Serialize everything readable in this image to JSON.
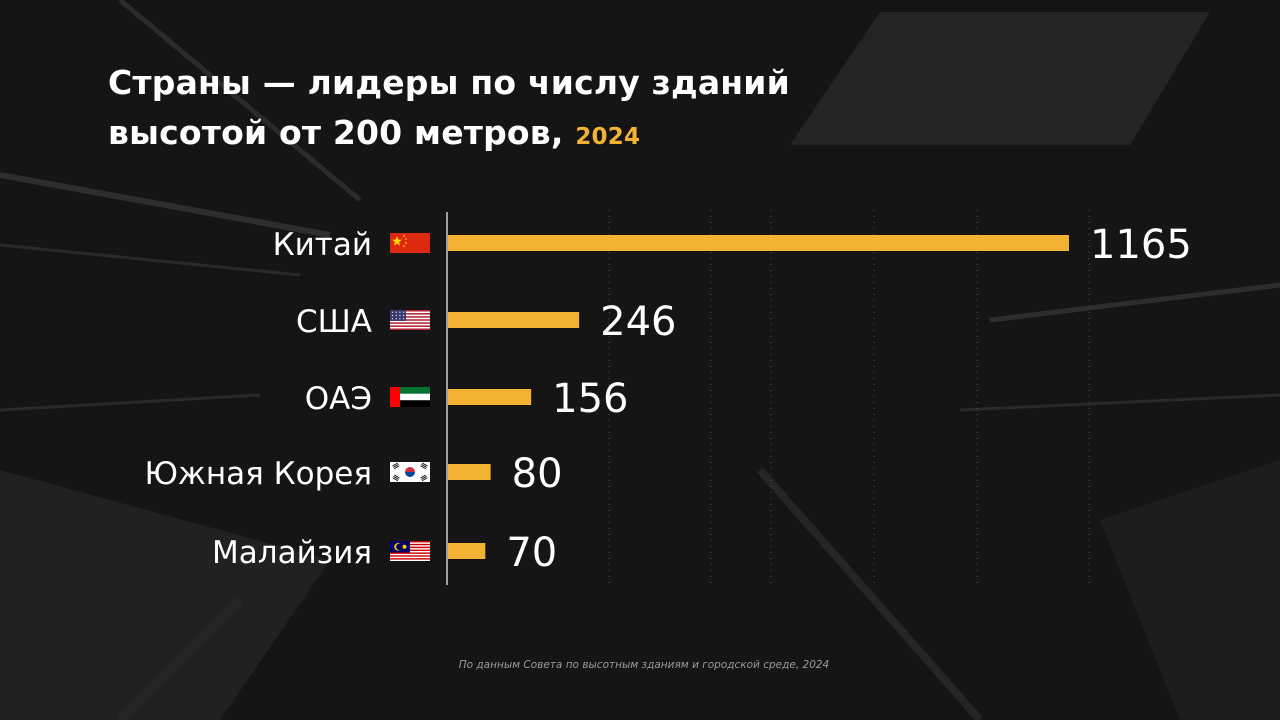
{
  "title": {
    "line1": "Страны — лидеры по числу зданий",
    "line2": "высотой от 200 метров,",
    "year": "2024"
  },
  "source": "По данным Совета по высотным зданиям и городской среде, 2024",
  "colors": {
    "bar": "#f4b235",
    "text": "#ffffff",
    "background": "#151515"
  },
  "chart_data": {
    "type": "bar",
    "orientation": "horizontal",
    "categories": [
      "Китай",
      "США",
      "ОАЭ",
      "Южная Корея",
      "Малайзия"
    ],
    "flags": [
      "china-flag-icon",
      "usa-flag-icon",
      "uae-flag-icon",
      "south-korea-flag-icon",
      "malaysia-flag-icon"
    ],
    "values": [
      1165,
      246,
      156,
      80,
      70
    ],
    "data_labels": [
      "1165",
      "246",
      "156",
      "80",
      "70"
    ],
    "xlim": [
      0,
      1200
    ],
    "grid": true
  }
}
